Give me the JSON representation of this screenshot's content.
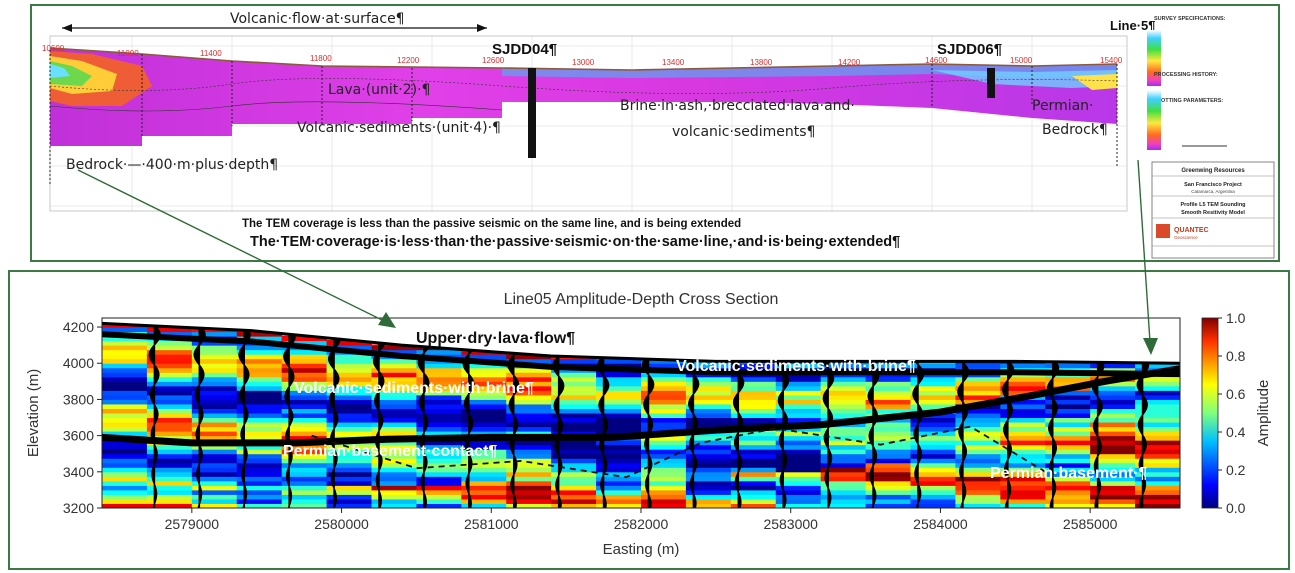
{
  "top": {
    "top_arrow_label": "Volcanic·flow·at·surface¶",
    "line_label": "Line·5¶",
    "stations": [
      "10600",
      "11000",
      "11400",
      "11800",
      "12200",
      "12600",
      "13000",
      "13400",
      "13800",
      "14200",
      "14600",
      "15000",
      "15400"
    ],
    "labels": {
      "sjdd04": "SJDD04¶",
      "sjdd06": "SJDD06¶",
      "lava": "Lava·(unit·2)·¶",
      "volcanic_sediments": "Volcanic·sediments·(unit·4)·¶",
      "bedrock": "Bedrock·—·400·m·plus·depth¶",
      "brine_line1": "Brine·in·ash,·brecciated·lava·and·",
      "brine_line2": "volcanic·sediments¶",
      "permian_line1": "Permian·",
      "permian_line2": "Bedrock¶",
      "coverage_small": "The TEM coverage is less than the passive seismic on the same line, and is being extended",
      "coverage_big": "The·TEM·coverage·is·less·than·the·passive·seismic·on·the·same·line,·and·is·being·extended¶"
    },
    "info": {
      "survey_specs": "SURVEY SPECIFICATIONS:",
      "processing_history": "PROCESSING HISTORY:",
      "plotting_params": "PLOTTING PARAMETERS:",
      "title_company": "Greenwing Resources",
      "title_project": "San Francisco Project",
      "title_location": "Catamarca, Argentina",
      "title_profile1": "Profile L5 TEM Sounding",
      "title_profile2": "Smooth Resitivity Model",
      "logo": "QUANTEC",
      "logo_sub": "Geoscience"
    }
  },
  "chart_data": {
    "type": "heatmap",
    "title": "Line05 Amplitude-Depth Cross Section",
    "xlabel": "Easting (m)",
    "ylabel": "Elevation (m)",
    "xlim": [
      2578400,
      2585600
    ],
    "ylim": [
      3200,
      4250
    ],
    "x_ticks": [
      2579000,
      2580000,
      2581000,
      2582000,
      2583000,
      2584000,
      2585000
    ],
    "y_ticks": [
      3200,
      3400,
      3600,
      3800,
      4000,
      4200
    ],
    "colorbar": {
      "label": "Amplitude",
      "ticks": [
        "0.0",
        "0.2",
        "0.4",
        "0.6",
        "0.8",
        "1.0"
      ]
    },
    "annotations": {
      "upper_dry": "Upper·dry·lava·flow¶",
      "volc_brine_left": "Volcanic·sediments·with·brine¶",
      "volc_brine_right": "Volcanic·sediments·with·brine¶",
      "permian_contact": "Permian·basement·contact¶",
      "permian_basement": "Permian·basement·¶"
    },
    "basement_contact": [
      [
        2578400,
        3590
      ],
      [
        2579000,
        3560
      ],
      [
        2579700,
        3560
      ],
      [
        2580300,
        3580
      ],
      [
        2581000,
        3590
      ],
      [
        2581800,
        3590
      ],
      [
        2582500,
        3630
      ],
      [
        2583200,
        3660
      ],
      [
        2584000,
        3730
      ],
      [
        2584600,
        3820
      ],
      [
        2585100,
        3900
      ],
      [
        2585600,
        3970
      ]
    ],
    "top_surface": [
      [
        2578400,
        4220
      ],
      [
        2579400,
        4180
      ],
      [
        2580400,
        4100
      ],
      [
        2581400,
        4040
      ],
      [
        2582500,
        4010
      ],
      [
        2583500,
        4010
      ],
      [
        2584500,
        4010
      ],
      [
        2585600,
        4000
      ]
    ]
  }
}
